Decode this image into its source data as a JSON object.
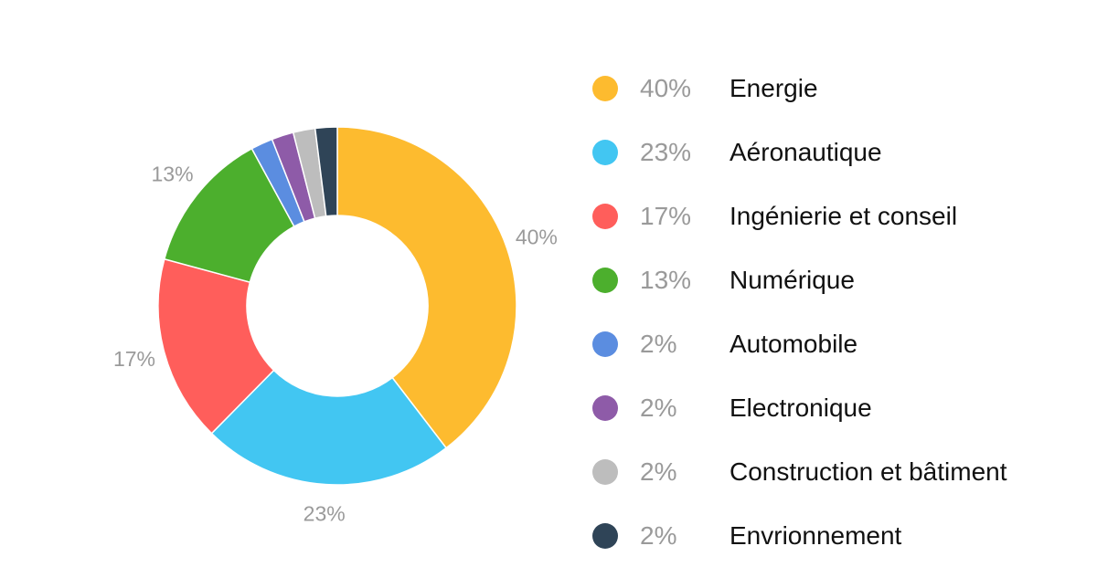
{
  "chart_data": {
    "type": "pie",
    "subtype": "donut",
    "title": "",
    "legend_position": "right",
    "slice_labels": [
      "40%",
      "23%",
      "17%",
      "13%",
      "",
      "",
      "",
      ""
    ],
    "slices": [
      {
        "label": "Energie",
        "value": 40,
        "value_label": "40%",
        "color": "#FDBB2F"
      },
      {
        "label": "Aéronautique",
        "value": 23,
        "value_label": "23%",
        "color": "#42C6F2"
      },
      {
        "label": "Ingénierie et conseil",
        "value": 17,
        "value_label": "17%",
        "color": "#FF5E5B"
      },
      {
        "label": "Numérique",
        "value": 13,
        "value_label": "13%",
        "color": "#4CAF2D"
      },
      {
        "label": "Automobile",
        "value": 2,
        "value_label": "2%",
        "color": "#5B8DE0"
      },
      {
        "label": "Electronique",
        "value": 2,
        "value_label": "2%",
        "color": "#8E5BA8"
      },
      {
        "label": "Construction et bâtiment",
        "value": 2,
        "value_label": "2%",
        "color": "#BDBDBD"
      },
      {
        "label": "Envrionnement",
        "value": 2,
        "value_label": "2%",
        "color": "#2F4457"
      }
    ]
  }
}
